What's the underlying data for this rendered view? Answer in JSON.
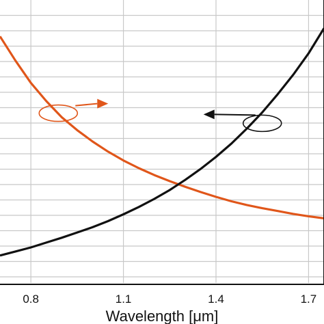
{
  "chart_data": {
    "type": "line",
    "xlabel": "Wavelength [μm]",
    "xlim": [
      0.7,
      1.75
    ],
    "x_ticks": [
      "0.8",
      "1.1",
      "1.4",
      "1.7"
    ],
    "y_ticks_left": [],
    "y_ticks_right": [],
    "grid": true,
    "legend": "none",
    "series": [
      {
        "color": "#e0561a",
        "axis": "right",
        "x": [
          0.7,
          0.75,
          0.8,
          0.85,
          0.9,
          0.95,
          1.0,
          1.05,
          1.1,
          1.15,
          1.2,
          1.25,
          1.3,
          1.35,
          1.4,
          1.45,
          1.5,
          1.55,
          1.6,
          1.65,
          1.7,
          1.75
        ],
        "y": [
          6.1,
          5.5,
          4.95,
          4.5,
          4.1,
          3.78,
          3.5,
          3.25,
          3.03,
          2.84,
          2.67,
          2.52,
          2.38,
          2.25,
          2.13,
          2.02,
          1.93,
          1.85,
          1.78,
          1.71,
          1.65,
          1.6
        ]
      },
      {
        "color": "#111111",
        "axis": "left",
        "x": [
          0.7,
          0.75,
          0.8,
          0.85,
          0.9,
          0.95,
          1.0,
          1.05,
          1.1,
          1.15,
          1.2,
          1.25,
          1.3,
          1.35,
          1.4,
          1.45,
          1.5,
          1.55,
          1.6,
          1.65,
          1.7,
          1.75
        ],
        "y": [
          0.68,
          0.78,
          0.88,
          1.0,
          1.12,
          1.25,
          1.38,
          1.53,
          1.7,
          1.88,
          2.08,
          2.3,
          2.55,
          2.82,
          3.12,
          3.45,
          3.82,
          4.22,
          4.67,
          5.15,
          5.68,
          6.3
        ]
      }
    ],
    "annotations": [
      {
        "series": "orange",
        "direction": "right",
        "anchor_x": 0.9,
        "anchor_y": 4.2
      },
      {
        "series": "black",
        "direction": "left",
        "anchor_x": 1.55,
        "anchor_y": 3.95
      }
    ]
  }
}
